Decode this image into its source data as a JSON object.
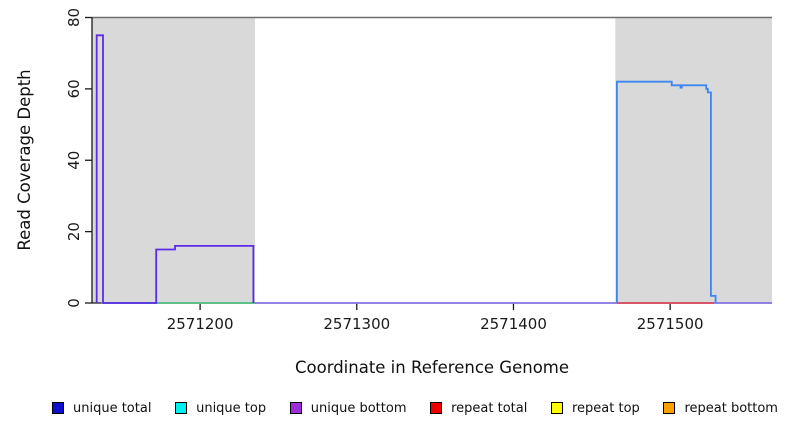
{
  "chart_data": {
    "type": "line",
    "title": "",
    "xlabel": "Coordinate in Reference Genome",
    "ylabel": "Read Coverage Depth",
    "xlim": [
      2571131,
      2571565
    ],
    "ylim": [
      0,
      80
    ],
    "x_ticks": [
      2571200,
      2571300,
      2571400,
      2571500
    ],
    "y_ticks": [
      0,
      20,
      40,
      60,
      80
    ],
    "grid": false,
    "top_rule_y": 80,
    "axis_color": "#1a1a1a",
    "top_rule_color": "#6f6f6f",
    "shaded_regions": [
      {
        "name": "left-gray-region",
        "x0": 2571131,
        "x1": 2571235,
        "color": "#d9d9d9"
      },
      {
        "name": "right-gray-region",
        "x0": 2571465,
        "x1": 2571565,
        "color": "#d9d9d9"
      }
    ],
    "series": [
      {
        "name": "zero-baseline",
        "color": "#8a7ae8",
        "points": [
          [
            2571137,
            0
          ],
          [
            2571565,
            0
          ]
        ]
      },
      {
        "name": "unique-top-zero-segment",
        "color": "#56c878",
        "points": [
          [
            2571137,
            0
          ],
          [
            2571235,
            0
          ]
        ]
      },
      {
        "name": "repeat-total-zero-segment",
        "color": "#e04f58",
        "points": [
          [
            2571466,
            0
          ],
          [
            2571528,
            0
          ]
        ]
      },
      {
        "name": "unique-bottom-left-block",
        "color": "#5b2be8",
        "points": [
          [
            2571134,
            0
          ],
          [
            2571134,
            75
          ],
          [
            2571138,
            75
          ],
          [
            2571138,
            0
          ],
          [
            2571172,
            0
          ],
          [
            2571172,
            15
          ],
          [
            2571184,
            15
          ],
          [
            2571184,
            16
          ],
          [
            2571234,
            16
          ],
          [
            2571234,
            0
          ]
        ]
      },
      {
        "name": "unique-total-right-block",
        "color": "#3d85f0",
        "points": [
          [
            2571466,
            0
          ],
          [
            2571466,
            62
          ],
          [
            2571501,
            62
          ],
          [
            2571501,
            61
          ],
          [
            2571523,
            61
          ],
          [
            2571523,
            60
          ],
          [
            2571524,
            60
          ],
          [
            2571524,
            59
          ],
          [
            2571526,
            59
          ],
          [
            2571526,
            2
          ],
          [
            2571529,
            2
          ],
          [
            2571529,
            0
          ]
        ]
      }
    ],
    "markers": [
      {
        "name": "coverage-dip-marker",
        "x": 2571507,
        "y": 60.5,
        "color": "#3d85f0"
      }
    ],
    "legend_position": "bottom",
    "legend": [
      {
        "label": "unique total",
        "color": "#0f0fd0"
      },
      {
        "label": "unique top",
        "color": "#00f0f0"
      },
      {
        "label": "unique bottom",
        "color": "#9c2bdb"
      },
      {
        "label": "repeat total",
        "color": "#ee0000"
      },
      {
        "label": "repeat top",
        "color": "#ffff00"
      },
      {
        "label": "repeat bottom",
        "color": "#ffa000"
      }
    ]
  }
}
